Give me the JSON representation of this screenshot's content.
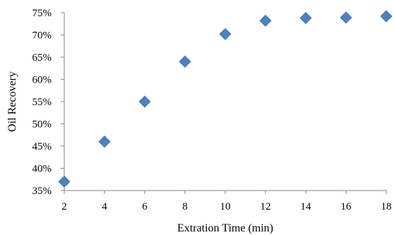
{
  "chart_data": {
    "type": "scatter",
    "title": "",
    "xlabel": "Extration Time (min)",
    "ylabel": "Oil Recovery",
    "xlim": [
      2,
      18
    ],
    "ylim": [
      35,
      75
    ],
    "x_ticks": [
      2,
      4,
      6,
      8,
      10,
      12,
      14,
      16,
      18
    ],
    "y_ticks": [
      35,
      40,
      45,
      50,
      55,
      60,
      65,
      70,
      75
    ],
    "y_tick_labels": [
      "35%",
      "40%",
      "45%",
      "50%",
      "55%",
      "60%",
      "65%",
      "70%",
      "75%"
    ],
    "grid": false,
    "legend": false,
    "marker": "diamond",
    "marker_color": "#4F81BD",
    "series": [
      {
        "x": [
          2,
          4,
          6,
          8,
          10,
          12,
          14,
          16,
          18
        ],
        "y": [
          37,
          46,
          55,
          64,
          70.2,
          73.2,
          73.8,
          73.9,
          74.2
        ]
      }
    ]
  }
}
